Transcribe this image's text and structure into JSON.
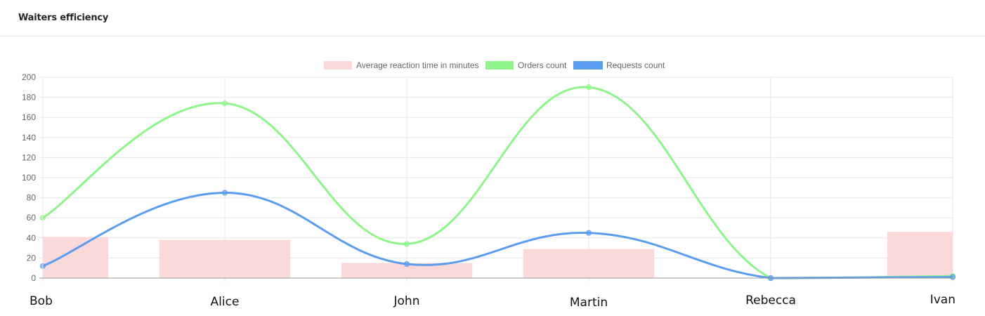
{
  "card": {
    "title": "Waiters efficiency"
  },
  "colors": {
    "reaction_fill": "#fbd9d9",
    "orders_line": "#8ef58a",
    "requests_line": "#5a9ced",
    "grid": "#e6e6e6",
    "axis": "#9a9a9a"
  },
  "chart_data": {
    "type": "bar",
    "categories": [
      "Bob",
      "Alice",
      "John",
      "Martin",
      "Rebecca",
      "Ivan"
    ],
    "series": [
      {
        "name": "Average reaction time in minutes",
        "type": "bar",
        "values": [
          41,
          38,
          15,
          29,
          0,
          46
        ]
      },
      {
        "name": "Orders count",
        "type": "line",
        "values": [
          60,
          174,
          34,
          190,
          0,
          2
        ]
      },
      {
        "name": "Requests count",
        "type": "line",
        "values": [
          12,
          85,
          14,
          45,
          0,
          1
        ]
      }
    ],
    "title": "",
    "xlabel": "",
    "ylabel": "",
    "ylim": [
      0,
      200
    ],
    "yticks": [
      0,
      20,
      40,
      60,
      80,
      100,
      120,
      140,
      160,
      180,
      200
    ],
    "grid": true,
    "legend": "top-center"
  }
}
